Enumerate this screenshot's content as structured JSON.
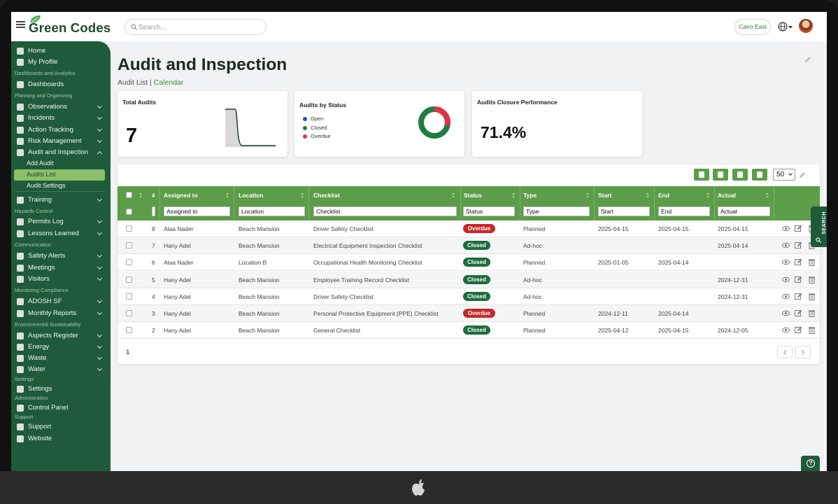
{
  "app": {
    "logo_text": "Green Codes"
  },
  "search": {
    "placeholder": "Search..."
  },
  "header": {
    "site": "Cairo East"
  },
  "sidebar": {
    "items": [
      {
        "label": "Home",
        "icon": "home-icon"
      },
      {
        "label": "My Profile",
        "icon": "user-icon"
      },
      {
        "label": "Dashboards",
        "icon": "dashboard-icon"
      },
      {
        "label": "Observations",
        "icon": "eye-icon"
      },
      {
        "label": "Incidents",
        "icon": "briefcase-icon"
      },
      {
        "label": "Action Tracking",
        "icon": "arrow-icon"
      },
      {
        "label": "Risk Management",
        "icon": "warning-icon"
      },
      {
        "label": "Audit and Inspection",
        "icon": "pen-icon"
      },
      {
        "label": "Add Audit"
      },
      {
        "label": "Audits List"
      },
      {
        "label": "Audit Settings"
      },
      {
        "label": "Training",
        "icon": "chart-icon"
      },
      {
        "label": "Permits Log",
        "icon": "list-icon"
      },
      {
        "label": "Lessons Learned",
        "icon": "book-icon"
      },
      {
        "label": "Safety Alerts",
        "icon": "megaphone-icon"
      },
      {
        "label": "Meetings",
        "icon": "chat-icon"
      },
      {
        "label": "Visitors",
        "icon": "visitor-icon"
      },
      {
        "label": "ADOSH SF",
        "icon": "folder-icon"
      },
      {
        "label": "Monthly Reports",
        "icon": "calendar-icon"
      },
      {
        "label": "Aspects Register",
        "icon": "puzzle-icon"
      },
      {
        "label": "Energy",
        "icon": "bolt-icon"
      },
      {
        "label": "Waste",
        "icon": "waste-icon"
      },
      {
        "label": "Water",
        "icon": "water-icon"
      },
      {
        "label": "Settings",
        "icon": "gear-icon"
      },
      {
        "label": "Control Panel",
        "icon": "control-icon"
      },
      {
        "label": "Support",
        "icon": "support-icon"
      },
      {
        "label": "Website",
        "icon": "globe-icon"
      }
    ],
    "sections": [
      "Dashboards and Analytics",
      "Planning and Organizing",
      "Hazards Control",
      "Communication",
      "Monitoring Compliance",
      "Environmental Sustainability",
      "Settings",
      "Administration",
      "Support"
    ]
  },
  "page": {
    "title": "Audit and Inspection",
    "crumb_list": "Audit List",
    "crumb_sep": "|",
    "crumb_calendar": "Calendar"
  },
  "cards": {
    "total": {
      "title": "Total Audits",
      "value": "7"
    },
    "status": {
      "title": "Audits by Status",
      "legend": [
        {
          "label": "Open",
          "color": "#1a56db"
        },
        {
          "label": "Closed",
          "color": "#1e7d45"
        },
        {
          "label": "Overdue",
          "color": "#dc3545"
        }
      ],
      "closed_fraction": 0.714,
      "overdue_fraction": 0.286
    },
    "closure": {
      "title": "Audits Closure Performance",
      "value": "71.4%"
    }
  },
  "toolbar": {
    "page_size": "50"
  },
  "table": {
    "columns": [
      "#",
      "Assigned to",
      "Location",
      "Checklist",
      "Status",
      "Type",
      "Start",
      "End",
      "Actual"
    ],
    "filter_placeholders": [
      "Assigned to",
      "Location",
      "Checklist",
      "Status",
      "Type",
      "Start",
      "End",
      "Actual"
    ],
    "rows": [
      {
        "num": "8",
        "assigned": "Alaa Nader",
        "location": "Beach Mansion",
        "checklist": "Driver Safety Checklist",
        "status": "Overdue",
        "type": "Planned",
        "start": "2025-04-15",
        "end": "2025-04-15",
        "actual": "2025-04-15"
      },
      {
        "num": "7",
        "assigned": "Hany Adel",
        "location": "Beach Mansion",
        "checklist": "Electrical Equipment Inspection Checklist",
        "status": "Closed",
        "type": "Ad-hoc",
        "start": "",
        "end": "",
        "actual": "2025-04-14"
      },
      {
        "num": "6",
        "assigned": "Alaa Nader",
        "location": "Location B",
        "checklist": "Occupational Health Monitoring Checklist",
        "status": "Closed",
        "type": "Planned",
        "start": "2025-01-05",
        "end": "2025-04-14",
        "actual": ""
      },
      {
        "num": "5",
        "assigned": "Hany Adel",
        "location": "Beach Mansion",
        "checklist": "Employee Training Record Checklist",
        "status": "Closed",
        "type": "Ad-hoc",
        "start": "",
        "end": "",
        "actual": "2024-12-31"
      },
      {
        "num": "4",
        "assigned": "Hany Adel",
        "location": "Beach Mansion",
        "checklist": "Driver Safety Checklist",
        "status": "Closed",
        "type": "Ad-hoc",
        "start": "",
        "end": "",
        "actual": "2024-12-31"
      },
      {
        "num": "3",
        "assigned": "Hany Adel",
        "location": "Beach Mansion",
        "checklist": "Personal Protective Equipment (PPE) Checklist",
        "status": "Overdue",
        "type": "Planned",
        "start": "2024-12-11",
        "end": "2025-04-14",
        "actual": ""
      },
      {
        "num": "2",
        "assigned": "Hany Adel",
        "location": "Beach Mansion",
        "checklist": "General Checklist",
        "status": "Closed",
        "type": "Planned",
        "start": "2025-04-12",
        "end": "2025-04-15",
        "actual": "2024-12-05"
      }
    ]
  },
  "pager": {
    "current": "1"
  },
  "side_tab": {
    "label": "SEARCH"
  },
  "help": {
    "label": "?"
  },
  "colors": {
    "brand": "#1f5b3a",
    "table_header": "#5c9d4a",
    "overdue": "#c62828",
    "closed": "#1e6b3c"
  }
}
